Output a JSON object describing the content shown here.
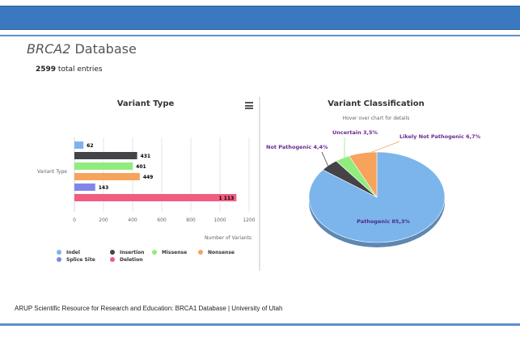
{
  "header": {
    "title_italic": "BRCA2",
    "title_rest": " Database",
    "total_count": "2599",
    "total_label": " total entries"
  },
  "footer": {
    "text": "ARUP Scientific Resource for Research and Education: BRCA1 Database | University of Utah"
  },
  "colors": {
    "topbar": "#3a78c0",
    "indel": "#7cb5ec",
    "insertion": "#434348",
    "missense": "#90ed7d",
    "nonsense": "#f7a35c",
    "splice_site": "#8085e9",
    "deletion": "#f15c80"
  },
  "chart_data": [
    {
      "type": "bar",
      "title": "Variant Type",
      "orientation": "horizontal",
      "category_label": "Variant Type",
      "xlabel": "Number of Variants",
      "xlim": [
        0,
        1200
      ],
      "xticks": [
        "0",
        "200",
        "400",
        "600",
        "800",
        "1000",
        "1200"
      ],
      "series": [
        {
          "name": "Indel",
          "value": 62,
          "label": "62",
          "color": "#7cb5ec"
        },
        {
          "name": "Insertion",
          "value": 431,
          "label": "431",
          "color": "#434348"
        },
        {
          "name": "Missense",
          "value": 401,
          "label": "401",
          "color": "#90ed7d"
        },
        {
          "name": "Nonsense",
          "value": 449,
          "label": "449",
          "color": "#f7a35c"
        },
        {
          "name": "Splice Site",
          "value": 143,
          "label": "143",
          "color": "#8085e9"
        },
        {
          "name": "Deletion",
          "value": 1113,
          "label": "1 113",
          "color": "#f15c80"
        }
      ],
      "legend_placement": "bottom",
      "grid": "vertical"
    },
    {
      "type": "pie",
      "title": "Variant Classification",
      "subtitle": "Hover over chart for details",
      "slices": [
        {
          "name": "Pathogenic",
          "value": 85.3,
          "label": "Pathogenic 85,3%",
          "color": "#7cb5ec"
        },
        {
          "name": "Not Pathogenic",
          "value": 4.4,
          "label": "Not Pathogenic 4,4%",
          "color": "#434348"
        },
        {
          "name": "Uncertain",
          "value": 3.5,
          "label": "Uncertain 3,5%",
          "color": "#90ed7d"
        },
        {
          "name": "Likely Not Pathogenic",
          "value": 6.7,
          "label": "Likely Not Pathogenic 6,7%",
          "color": "#f7a35c"
        }
      ]
    }
  ]
}
